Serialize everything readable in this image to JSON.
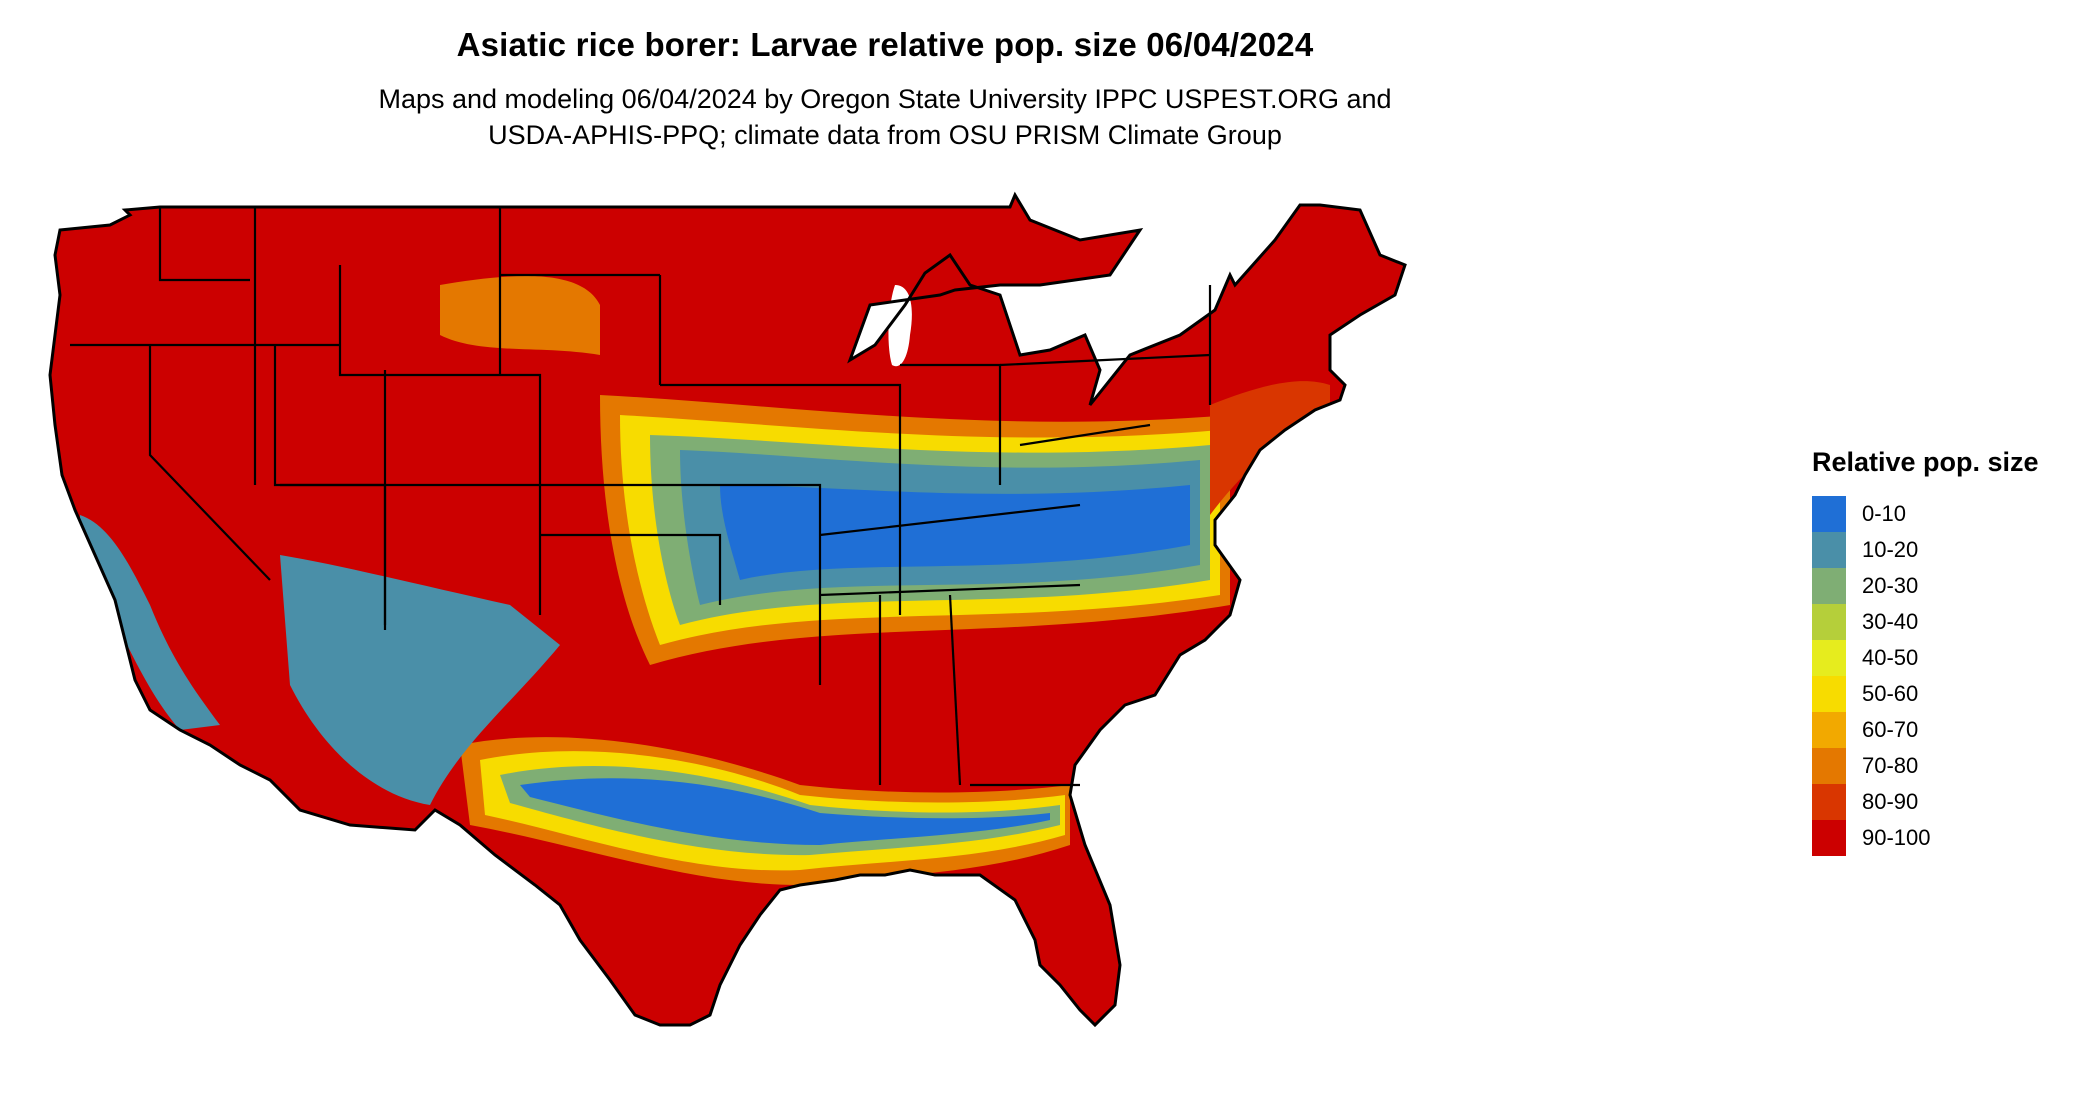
{
  "title": "Asiatic rice borer: Larvae relative pop. size 06/04/2024",
  "subtitle_line1": "Maps and modeling 06/04/2024 by Oregon State University IPPC USPEST.ORG and",
  "subtitle_line2": "USDA-APHIS-PPQ; climate data from OSU PRISM Climate Group",
  "legend": {
    "title": "Relative pop. size",
    "items": [
      {
        "label": "0-10",
        "color": "#1f6fd6"
      },
      {
        "label": "10-20",
        "color": "#4a8fa8"
      },
      {
        "label": "20-30",
        "color": "#7fae74"
      },
      {
        "label": "30-40",
        "color": "#b5cf3a"
      },
      {
        "label": "40-50",
        "color": "#e6ec1e"
      },
      {
        "label": "50-60",
        "color": "#f7dc00"
      },
      {
        "label": "60-70",
        "color": "#f2a900"
      },
      {
        "label": "70-80",
        "color": "#e47800"
      },
      {
        "label": "80-90",
        "color": "#d93600"
      },
      {
        "label": "90-100",
        "color": "#cc0000"
      }
    ]
  },
  "map": {
    "base_color": "#cc0000",
    "border_color": "#000000"
  }
}
